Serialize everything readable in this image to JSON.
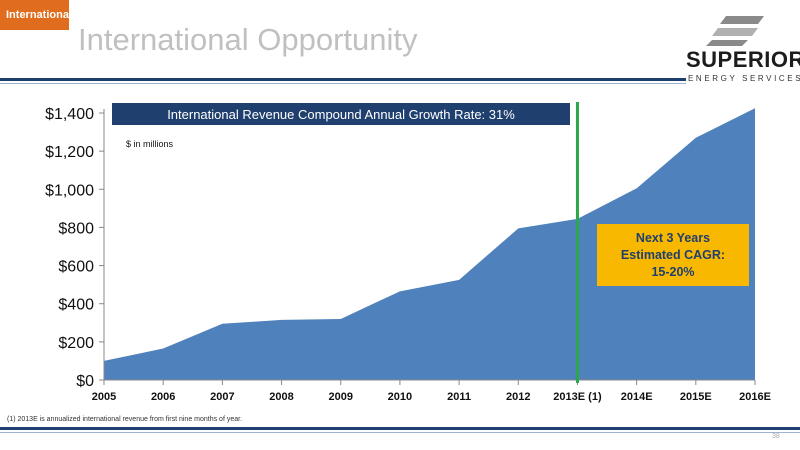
{
  "section_tag": "International",
  "slide_title": "International Opportunity",
  "logo": {
    "name": "SUPERIOR",
    "subtitle": "ENERGY SERVICES",
    "icon": "superior-s-logo-icon"
  },
  "colors": {
    "navy": "#1f3f6e",
    "area": "#4f81bd",
    "orange": "#e06d1e",
    "gold": "#f9b800",
    "marker": "#2aa84a"
  },
  "footnote": "(1) 2013E is annualized international revenue from first nine months of year.",
  "page_number": "38",
  "chart_data": {
    "type": "area",
    "title": "International Revenue Compound Annual Growth Rate: 31%",
    "subtitle": "$ in millions",
    "categories": [
      "2005",
      "2006",
      "2007",
      "2008",
      "2009",
      "2010",
      "2011",
      "2012",
      "2013E (1)",
      "2014E",
      "2015E",
      "2016E"
    ],
    "values": [
      100,
      165,
      295,
      315,
      320,
      465,
      525,
      795,
      845,
      1005,
      1270,
      1425
    ],
    "y_ticks": [
      "$0",
      "$200",
      "$400",
      "$600",
      "$800",
      "$1,000",
      "$1,200",
      "$1,400"
    ],
    "ylim": [
      0,
      1400
    ],
    "vertical_marker_category": "2013E (1)",
    "grid": false,
    "callout_lines": [
      "Next 3 Years",
      "Estimated CAGR:",
      "15-20%"
    ]
  }
}
